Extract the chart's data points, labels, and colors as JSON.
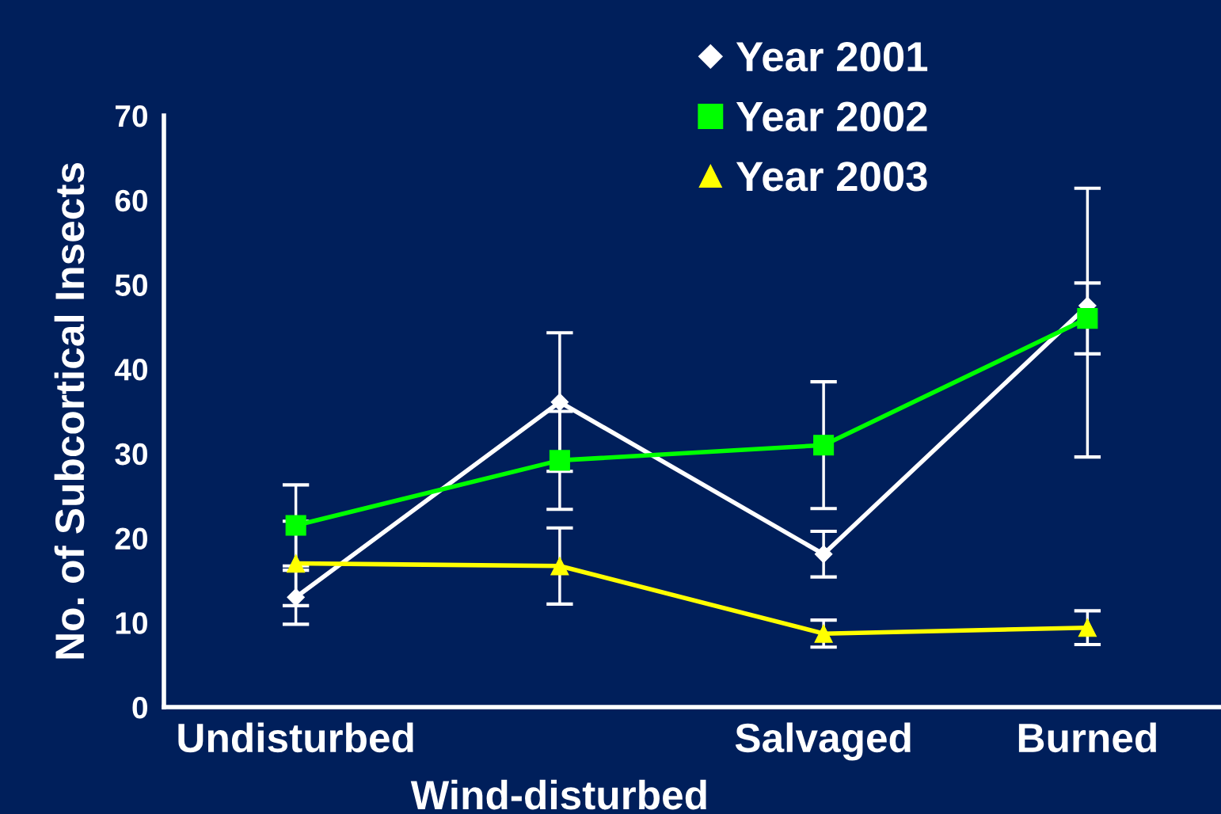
{
  "chart_data": {
    "type": "line",
    "ylabel": "No. of Subcortical Insects",
    "categories": [
      "Undisturbed",
      "Wind-disturbed",
      "Salvaged",
      "Burned"
    ],
    "series": [
      {
        "name": "Year 2001",
        "color": "#ffffff",
        "marker": "diamond",
        "values": [
          13,
          36.1,
          18.1,
          47.5
        ],
        "errors": [
          3.2,
          8.2,
          2.7,
          [
            29.6,
            61.4
          ]
        ]
      },
      {
        "name": "Year 2002",
        "color": "#00ff00",
        "marker": "square",
        "values": [
          21.5,
          29.2,
          31,
          46
        ],
        "errors": [
          4.8,
          5.8,
          7.5,
          4.2
        ]
      },
      {
        "name": "Year 2003",
        "color": "#ffff00",
        "marker": "triangle",
        "values": [
          17,
          16.7,
          8.7,
          9.4
        ],
        "errors": [
          5,
          4.5,
          1.6,
          2
        ]
      }
    ],
    "ylim": [
      0,
      70
    ],
    "yticks": [
      0,
      10,
      20,
      30,
      40,
      50,
      60,
      70
    ],
    "grid": false,
    "legend": "top right",
    "line_style": "solid"
  }
}
